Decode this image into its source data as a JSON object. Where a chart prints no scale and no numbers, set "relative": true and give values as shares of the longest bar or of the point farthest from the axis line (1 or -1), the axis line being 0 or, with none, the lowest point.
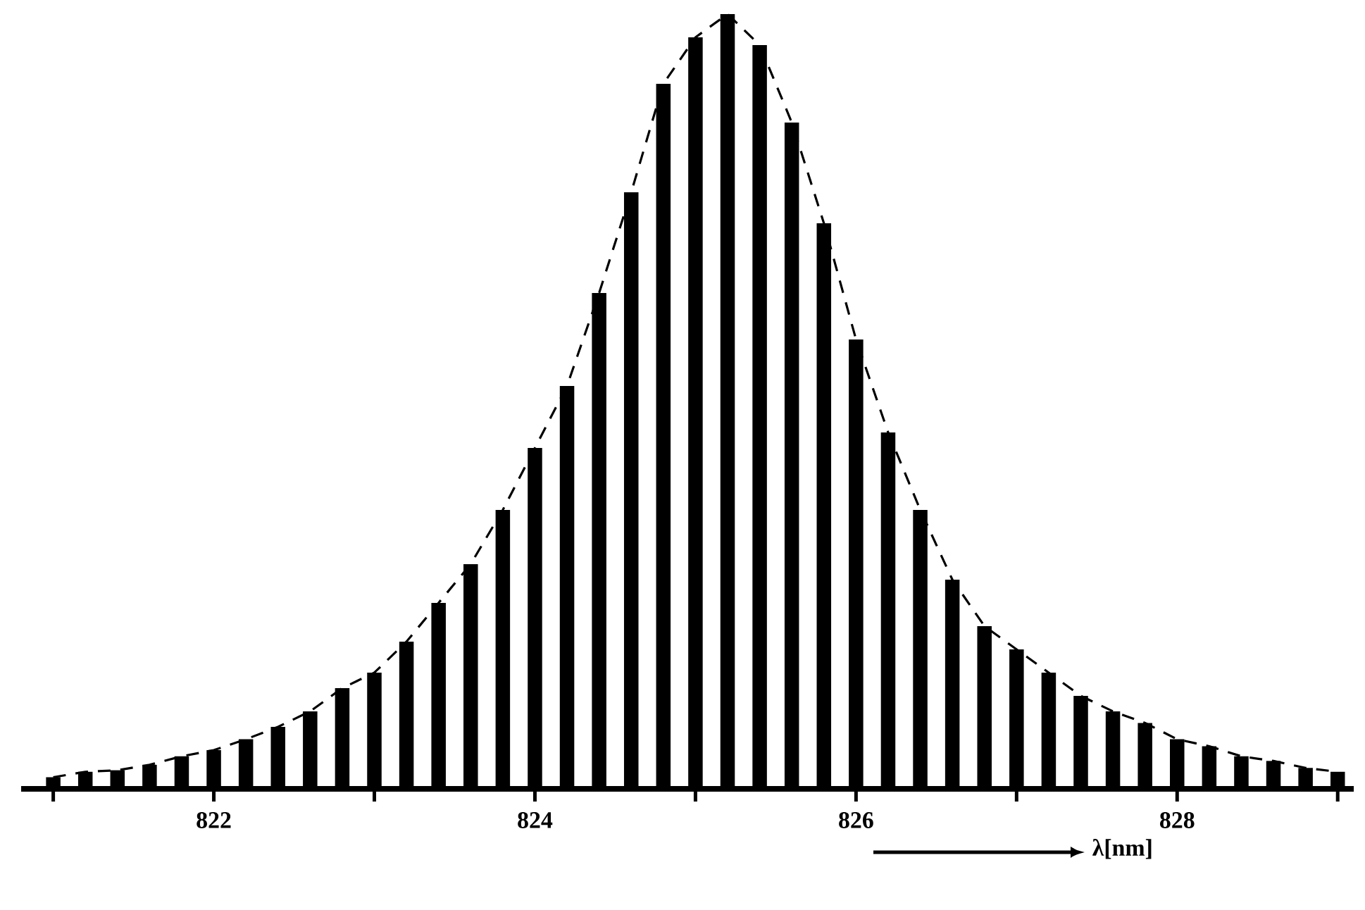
{
  "chart_data": {
    "type": "bar",
    "relative": true,
    "xlabel": "λ[nm]",
    "xlim": [
      820.8,
      829.1
    ],
    "xticks": [
      {
        "value": 821,
        "label": null
      },
      822,
      {
        "value": 823,
        "label": null
      },
      824,
      {
        "value": 825,
        "label": null
      },
      826,
      {
        "value": 827,
        "label": null
      },
      828,
      {
        "value": 829,
        "label": null
      }
    ],
    "series": [
      {
        "color": "#000000",
        "x": [
          821.0,
          821.2,
          821.4,
          821.6,
          821.8,
          822.0,
          822.2,
          822.4,
          822.6,
          822.8,
          823.0,
          823.2,
          823.4,
          823.6,
          823.8,
          824.0,
          824.2,
          824.4,
          824.6,
          824.8,
          825.0,
          825.2,
          825.4,
          825.6,
          825.8,
          826.0,
          826.2,
          826.4,
          826.6,
          826.8,
          827.0,
          827.2,
          827.4,
          827.6,
          827.8,
          828.0,
          828.2,
          828.4,
          828.6,
          828.8,
          829.0
        ],
        "values": [
          0.015,
          0.022,
          0.024,
          0.031,
          0.042,
          0.05,
          0.064,
          0.08,
          0.1,
          0.13,
          0.15,
          0.19,
          0.24,
          0.29,
          0.36,
          0.44,
          0.52,
          0.64,
          0.77,
          0.91,
          0.97,
          1.0,
          0.96,
          0.86,
          0.73,
          0.58,
          0.46,
          0.36,
          0.27,
          0.21,
          0.18,
          0.15,
          0.12,
          0.1,
          0.085,
          0.064,
          0.055,
          0.042,
          0.036,
          0.027,
          0.022
        ]
      },
      {
        "type": "line",
        "line_style": "dashed",
        "color": "#000000",
        "x": [
          821.0,
          821.2,
          821.4,
          821.6,
          821.8,
          822.0,
          822.2,
          822.4,
          822.6,
          822.8,
          823.0,
          823.2,
          823.4,
          823.6,
          823.8,
          824.0,
          824.2,
          824.4,
          824.6,
          824.8,
          825.0,
          825.2,
          825.4,
          825.6,
          825.8,
          826.0,
          826.2,
          826.4,
          826.6,
          826.8,
          827.0,
          827.2,
          827.4,
          827.6,
          827.8,
          828.0,
          828.2,
          828.4,
          828.6,
          828.8,
          829.0
        ],
        "values": [
          0.015,
          0.022,
          0.024,
          0.031,
          0.042,
          0.05,
          0.064,
          0.08,
          0.1,
          0.13,
          0.15,
          0.19,
          0.24,
          0.29,
          0.36,
          0.44,
          0.52,
          0.64,
          0.77,
          0.91,
          0.97,
          1.0,
          0.96,
          0.86,
          0.73,
          0.58,
          0.46,
          0.36,
          0.27,
          0.21,
          0.18,
          0.15,
          0.12,
          0.1,
          0.085,
          0.064,
          0.055,
          0.042,
          0.036,
          0.027,
          0.022
        ]
      }
    ]
  }
}
